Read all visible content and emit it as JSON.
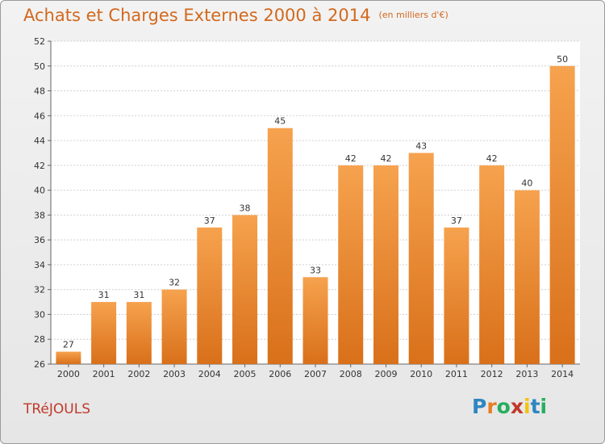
{
  "title": "Achats et Charges Externes 2000 à 2014",
  "unit": "(en milliers d'€)",
  "commune": "TRéJOULS",
  "logo": {
    "letters": [
      "P",
      "r",
      "o",
      "x",
      "i",
      "t",
      "i"
    ],
    "colors": [
      "#2e86c1",
      "#e67e22",
      "#27ae60",
      "#c0392b",
      "#f1c40f",
      "#2e86c1",
      "#27ae60"
    ]
  },
  "colors": {
    "bar_top": "#f6a24e",
    "bar_bottom": "#d9701a",
    "title": "#d2691e"
  },
  "chart_data": {
    "type": "bar",
    "title": "Achats et Charges Externes 2000 à 2014",
    "subtitle": "(en milliers d'€)",
    "xlabel": "",
    "ylabel": "",
    "categories": [
      "2000",
      "2001",
      "2002",
      "2003",
      "2004",
      "2005",
      "2006",
      "2007",
      "2008",
      "2009",
      "2010",
      "2011",
      "2012",
      "2013",
      "2014"
    ],
    "values": [
      27,
      31,
      31,
      32,
      37,
      38,
      45,
      33,
      42,
      42,
      43,
      37,
      42,
      40,
      50
    ],
    "ylim": [
      26,
      52
    ],
    "yticks": [
      26,
      28,
      30,
      32,
      34,
      36,
      38,
      40,
      42,
      44,
      46,
      48,
      50,
      52
    ],
    "grid": true,
    "legend": "none"
  }
}
